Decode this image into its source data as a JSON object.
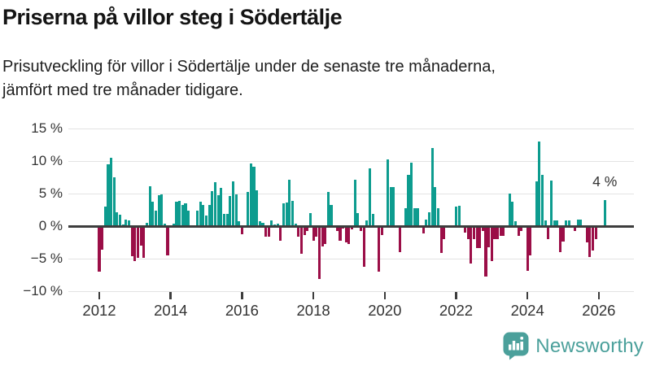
{
  "header": {
    "title": "Priserna på villor steg i Södertälje",
    "subtitle": "Prisutveckling för villor i Södertälje under de senaste tre månaderna,\njämfört med tre månader tidigare."
  },
  "annotation": {
    "label": "4 %"
  },
  "footer": {
    "brand": "Newsworthy"
  },
  "colors": {
    "positive": "#0d9c8f",
    "negative": "#9b0e47",
    "axis": "#3d3d3d",
    "grid": "#e3e3e3",
    "text": "#333333",
    "logo_teal": "#4ba09b"
  },
  "chart_data": {
    "type": "bar",
    "title": "Priserna på villor steg i Södertälje",
    "ylabel": "",
    "xlabel": "",
    "unit": "%",
    "ylim": [
      -10,
      15
    ],
    "grid": true,
    "y_ticks": [
      {
        "value": 15,
        "label": "15 %"
      },
      {
        "value": 10,
        "label": "10 %"
      },
      {
        "value": 5,
        "label": "5 %"
      },
      {
        "value": 0,
        "label": "0 %"
      },
      {
        "value": -5,
        "label": "−5 %"
      },
      {
        "value": -10,
        "label": "−10 %"
      }
    ],
    "x_ticks": [
      2012,
      2014,
      2016,
      2018,
      2020,
      2022,
      2024,
      2026
    ],
    "start_month": "2012-01",
    "frequency": "monthly",
    "last_point_label": "4 %",
    "values": [
      -7.0,
      -3.6,
      3.0,
      9.5,
      10.5,
      7.5,
      2.1,
      1.8,
      0.3,
      1.0,
      0.9,
      -4.6,
      -5.4,
      -4.9,
      -3.0,
      -4.9,
      0.5,
      6.1,
      3.8,
      2.4,
      4.7,
      4.9,
      0.4,
      -4.5,
      0,
      0.4,
      3.7,
      3.9,
      3.2,
      3.5,
      2.4,
      0,
      0,
      2.4,
      3.8,
      3.3,
      1.6,
      3.2,
      5.4,
      6.8,
      4.8,
      5.9,
      1.9,
      1.9,
      4.6,
      6.9,
      4.9,
      0.7,
      -1.2,
      0,
      5.2,
      9.6,
      9.1,
      5.5,
      0.7,
      0.5,
      -1.6,
      -1.6,
      0.9,
      0.3,
      0.4,
      -2.3,
      3.5,
      3.6,
      7.1,
      3.9,
      0.4,
      -1.6,
      -4.2,
      -1.4,
      -0.8,
      2.0,
      -2.2,
      -1.6,
      -8.1,
      -3.1,
      -2.7,
      5.2,
      3.3,
      0,
      -0.8,
      -2.2,
      -0.4,
      -2.5,
      -2.8,
      -0.5,
      7.1,
      2.0,
      -0.8,
      -6.3,
      0.9,
      8.9,
      1.9,
      0,
      -7.0,
      -1.4,
      0,
      10.2,
      6.0,
      6.0,
      0,
      -4.0,
      0,
      2.8,
      7.9,
      9.8,
      2.8,
      2.8,
      0,
      -1.1,
      1.0,
      2.1,
      12.0,
      6.0,
      2.8,
      -4.1,
      -2.0,
      0,
      0,
      0,
      3.0,
      3.1,
      0,
      -1.0,
      -2.0,
      -5.8,
      -2.0,
      -3.4,
      -3.4,
      -0.8,
      -7.8,
      -3.2,
      -5.4,
      -2.0,
      -2.0,
      -1.5,
      -1.5,
      0,
      5.0,
      3.8,
      0.8,
      -1.5,
      -0.8,
      0,
      -6.9,
      -4.5,
      0,
      6.9,
      13.0,
      7.9,
      0.9,
      -2.0,
      7.0,
      0.9,
      0.9,
      -4.0,
      -2.4,
      0.9,
      0.9,
      0,
      -0.7,
      1.0,
      1.0,
      0,
      -2.5,
      -4.8,
      -3.7,
      -2.0,
      0,
      0,
      4.0
    ]
  }
}
